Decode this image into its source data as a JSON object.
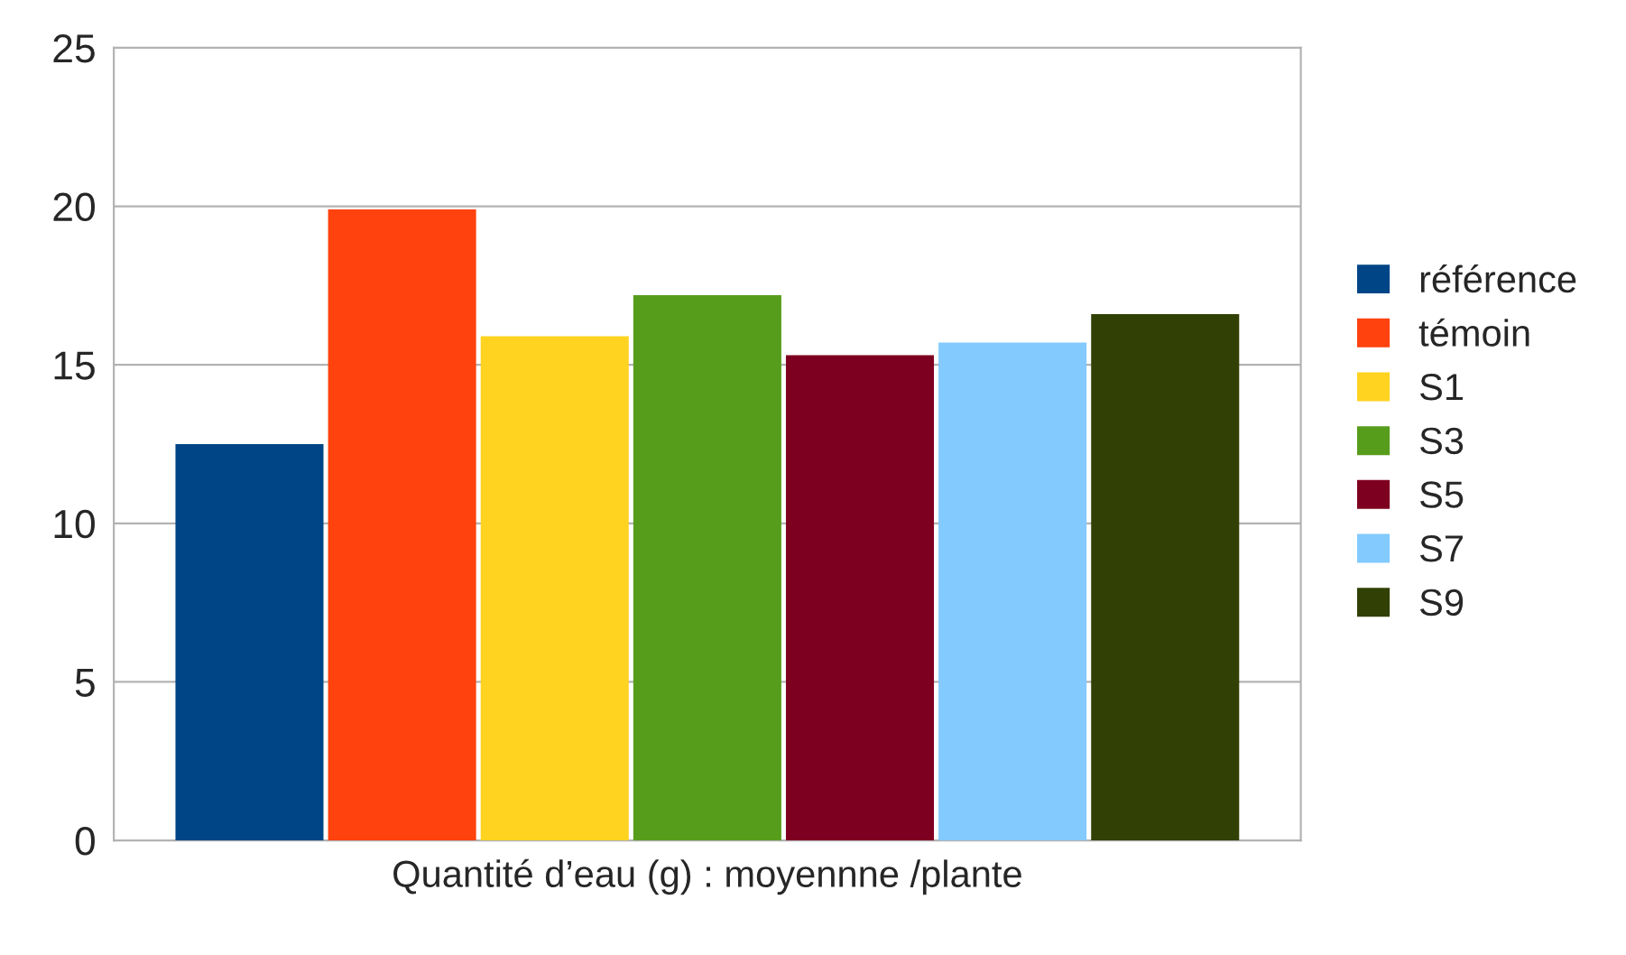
{
  "chart_data": {
    "type": "bar",
    "xlabel": "Quantité d’eau (g) : moyennne /plante",
    "categories": [
      null
    ],
    "series": [
      {
        "name": "référence",
        "color": "#004586",
        "values": [
          12.5
        ]
      },
      {
        "name": "témoin",
        "color": "#ff420e",
        "values": [
          19.9
        ]
      },
      {
        "name": "S1",
        "color": "#ffd320",
        "values": [
          15.9
        ]
      },
      {
        "name": "S3",
        "color": "#579d1c",
        "values": [
          17.2
        ]
      },
      {
        "name": "S5",
        "color": "#7e0021",
        "values": [
          15.3
        ]
      },
      {
        "name": "S7",
        "color": "#83caff",
        "values": [
          15.7
        ]
      },
      {
        "name": "S9",
        "color": "#314004",
        "values": [
          16.6
        ]
      }
    ],
    "ylim": [
      0,
      25
    ],
    "yticks": [
      0,
      5,
      10,
      15,
      20,
      25
    ],
    "grid": "y",
    "legend": "right"
  }
}
